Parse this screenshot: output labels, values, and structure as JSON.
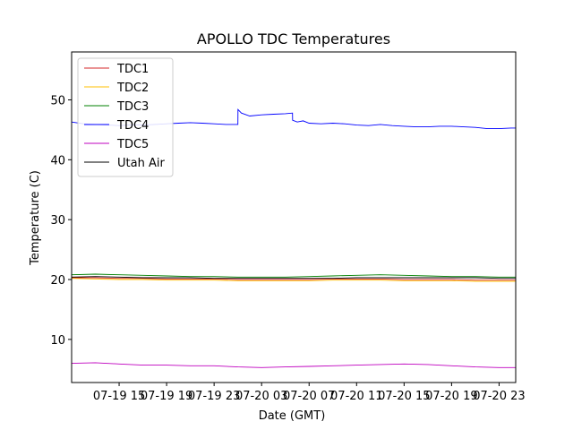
{
  "chart_data": {
    "type": "line",
    "title": "APOLLO TDC Temperatures",
    "xlabel": "Date (GMT)",
    "ylabel": "Temperature (C)",
    "x_unit": "hours since 07-19 11:00 GMT",
    "xlim": [
      0.0,
      37.4
    ],
    "ylim": [
      2.8,
      58.0
    ],
    "x_ticks": [
      {
        "value": 4,
        "label": "07-19 15"
      },
      {
        "value": 8,
        "label": "07-19 19"
      },
      {
        "value": 12,
        "label": "07-19 23"
      },
      {
        "value": 16,
        "label": "07-20 03"
      },
      {
        "value": 20,
        "label": "07-20 07"
      },
      {
        "value": 24,
        "label": "07-20 11"
      },
      {
        "value": 28,
        "label": "07-20 15"
      },
      {
        "value": 32,
        "label": "07-20 19"
      },
      {
        "value": 36,
        "label": "07-20 23"
      }
    ],
    "y_ticks": [
      {
        "value": 10,
        "label": "10"
      },
      {
        "value": 20,
        "label": "20"
      },
      {
        "value": 30,
        "label": "30"
      },
      {
        "value": 40,
        "label": "40"
      },
      {
        "value": 50,
        "label": "50"
      }
    ],
    "grid": false,
    "legend_position": "top-left",
    "series": [
      {
        "name": "TDC1",
        "color": "#d62728",
        "x": [
          0,
          2,
          4,
          6,
          8,
          10,
          12,
          14,
          16,
          18,
          20,
          22,
          24,
          26,
          28,
          30,
          32,
          34,
          36,
          37.4
        ],
        "y": [
          20.3,
          20.3,
          20.2,
          20.2,
          20.1,
          20.1,
          20.1,
          20.0,
          20.0,
          20.0,
          20.0,
          20.1,
          20.1,
          20.1,
          20.0,
          20.0,
          20.0,
          19.9,
          19.9,
          19.9
        ]
      },
      {
        "name": "TDC2",
        "color": "#ffbf00",
        "x": [
          0,
          2,
          4,
          6,
          8,
          10,
          12,
          14,
          16,
          18,
          20,
          22,
          24,
          26,
          28,
          30,
          32,
          34,
          36,
          37.4
        ],
        "y": [
          20.2,
          20.1,
          20.0,
          20.0,
          19.9,
          19.9,
          19.9,
          19.8,
          19.8,
          19.8,
          19.8,
          19.9,
          19.9,
          19.9,
          19.8,
          19.8,
          19.8,
          19.7,
          19.7,
          19.7
        ]
      },
      {
        "name": "TDC3",
        "color": "#008000",
        "x": [
          0,
          2,
          4,
          6,
          8,
          10,
          12,
          14,
          16,
          18,
          20,
          22,
          24,
          26,
          28,
          30,
          32,
          34,
          36,
          37.4
        ],
        "y": [
          20.8,
          20.9,
          20.8,
          20.7,
          20.6,
          20.5,
          20.5,
          20.4,
          20.4,
          20.4,
          20.5,
          20.6,
          20.7,
          20.8,
          20.7,
          20.6,
          20.5,
          20.5,
          20.4,
          20.4
        ]
      },
      {
        "name": "TDC4",
        "color": "#0000ff",
        "x": [
          0,
          1,
          2,
          3,
          4,
          5,
          6,
          7,
          8,
          9,
          10,
          11,
          12,
          13,
          14,
          14.01,
          14.3,
          15,
          16,
          17,
          18,
          18.6,
          18.61,
          19,
          19.5,
          20,
          21,
          22,
          23,
          24,
          25,
          26,
          27,
          28,
          29,
          30,
          31,
          32,
          33,
          34,
          35,
          36,
          37,
          37.4
        ],
        "y": [
          46.3,
          46.0,
          45.9,
          45.8,
          45.7,
          45.8,
          45.8,
          45.9,
          46.0,
          46.1,
          46.2,
          46.1,
          46.0,
          45.9,
          45.9,
          48.4,
          47.8,
          47.3,
          47.5,
          47.6,
          47.7,
          47.8,
          46.6,
          46.3,
          46.5,
          46.1,
          46.0,
          46.1,
          46.0,
          45.8,
          45.7,
          45.9,
          45.7,
          45.6,
          45.5,
          45.5,
          45.6,
          45.6,
          45.5,
          45.4,
          45.2,
          45.2,
          45.3,
          45.3
        ]
      },
      {
        "name": "TDC5",
        "color": "#bf00bf",
        "x": [
          0,
          2,
          4,
          6,
          8,
          10,
          12,
          14,
          16,
          18,
          20,
          22,
          24,
          26,
          28,
          30,
          32,
          34,
          36,
          37.4
        ],
        "y": [
          6.0,
          6.1,
          5.9,
          5.7,
          5.7,
          5.6,
          5.6,
          5.4,
          5.3,
          5.4,
          5.5,
          5.6,
          5.7,
          5.8,
          5.9,
          5.8,
          5.6,
          5.4,
          5.3,
          5.3
        ]
      },
      {
        "name": "Utah Air",
        "color": "#000000",
        "x": [
          0,
          2,
          4,
          6,
          8,
          10,
          12,
          14,
          16,
          18,
          20,
          22,
          24,
          26,
          28,
          30,
          32,
          34,
          36,
          37.4
        ],
        "y": [
          20.4,
          20.5,
          20.4,
          20.3,
          20.3,
          20.3,
          20.2,
          20.2,
          20.2,
          20.2,
          20.2,
          20.2,
          20.3,
          20.3,
          20.3,
          20.3,
          20.3,
          20.3,
          20.2,
          20.2
        ]
      }
    ]
  }
}
